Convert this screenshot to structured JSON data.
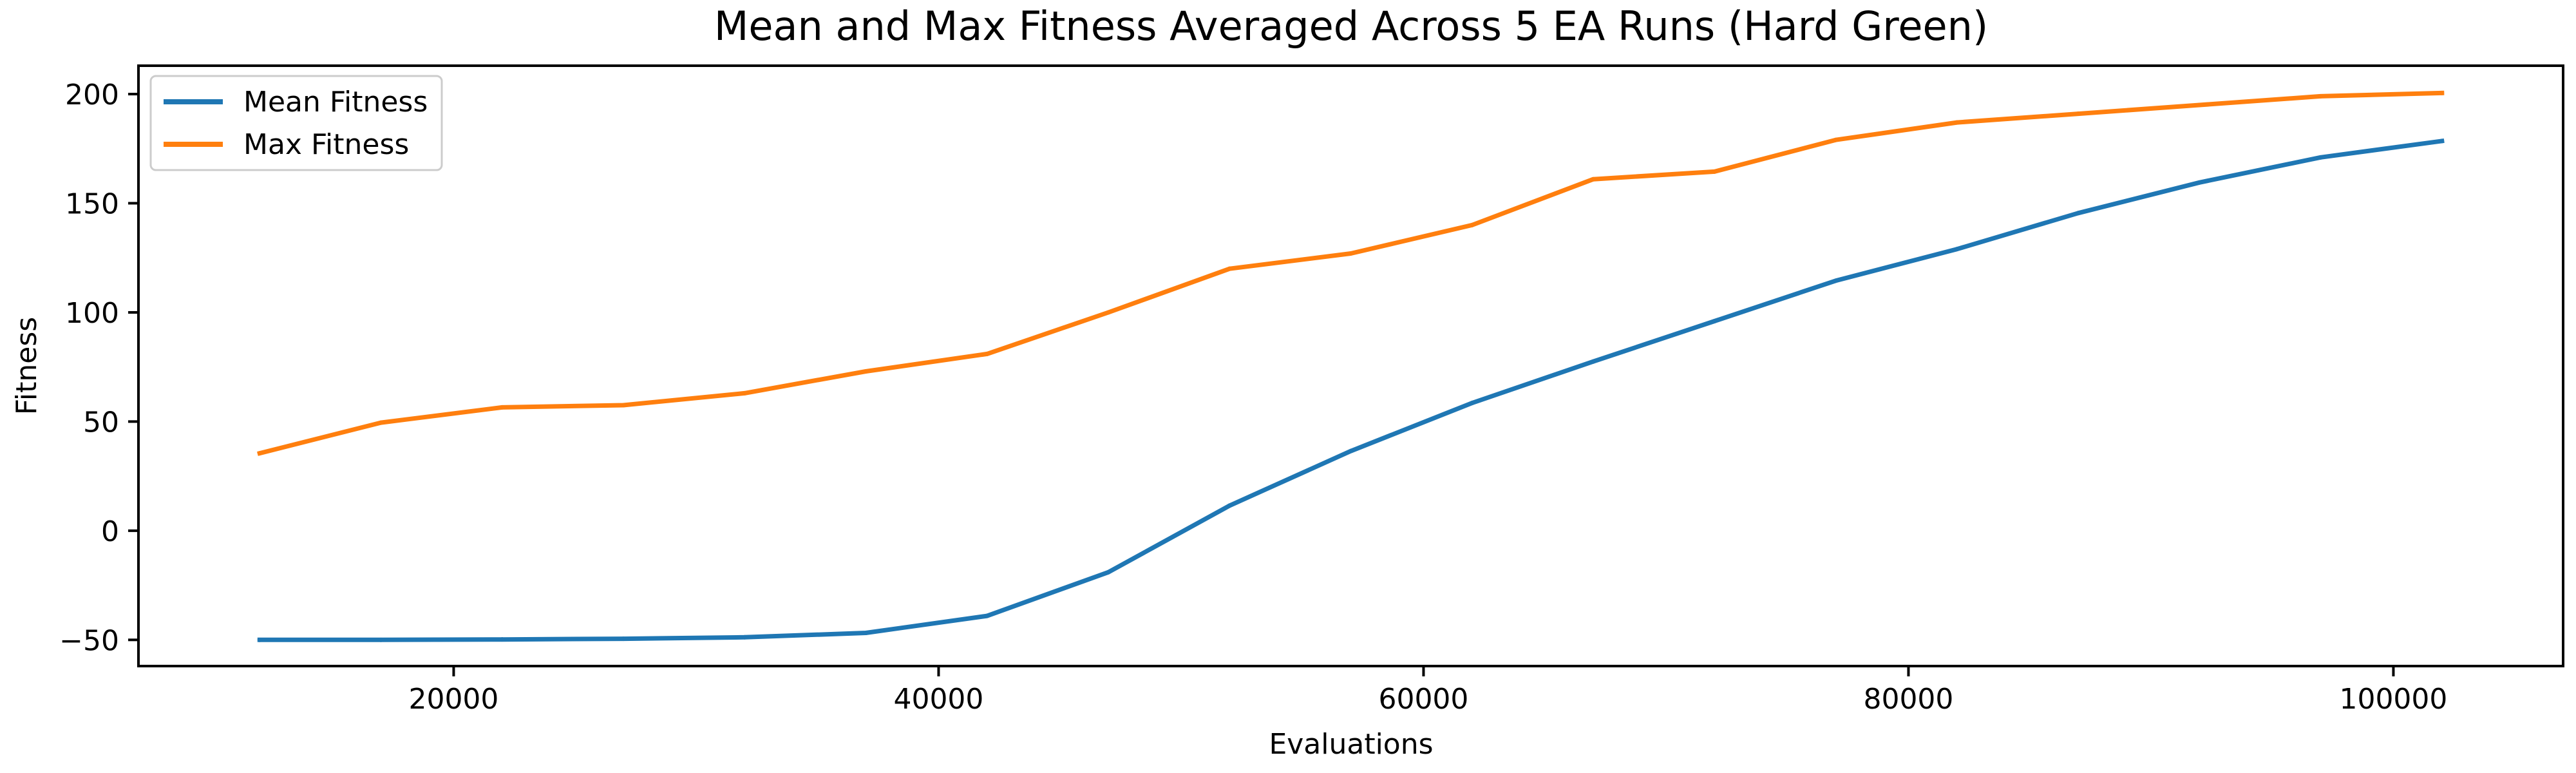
{
  "chart_data": {
    "type": "line",
    "title": "Mean and Max Fitness Averaged Across 5 EA Runs (Hard Green)",
    "xlabel": "Evaluations",
    "ylabel": "Fitness",
    "xlim": [
      7000,
      107000
    ],
    "ylim": [
      -62,
      213
    ],
    "xticks": [
      {
        "value": 20000,
        "label": "20000"
      },
      {
        "value": 40000,
        "label": "40000"
      },
      {
        "value": 60000,
        "label": "60000"
      },
      {
        "value": 80000,
        "label": "80000"
      },
      {
        "value": 100000,
        "label": "100000"
      }
    ],
    "yticks": [
      {
        "value": -50,
        "label": "−50"
      },
      {
        "value": 0,
        "label": "0"
      },
      {
        "value": 50,
        "label": "50"
      },
      {
        "value": 100,
        "label": "100"
      },
      {
        "value": 150,
        "label": "150"
      },
      {
        "value": 200,
        "label": "200"
      }
    ],
    "grid": false,
    "legend_position": "top-left",
    "x": [
      12000,
      17000,
      22000,
      27000,
      32000,
      37000,
      42000,
      47000,
      52000,
      57000,
      62000,
      67000,
      72000,
      77000,
      82000,
      87000,
      92000,
      97000,
      102000
    ],
    "series": [
      {
        "name": "Mean Fitness",
        "color": "#1f77b4",
        "values": [
          -50,
          -50,
          -49.8,
          -49.5,
          -48.8,
          -46.8,
          -39,
          -19,
          11.5,
          36.5,
          58.5,
          77.5,
          96,
          114.5,
          129,
          145.5,
          159.5,
          171,
          178.5
        ]
      },
      {
        "name": "Max Fitness",
        "color": "#ff7f0e",
        "values": [
          35.5,
          49.5,
          56.5,
          57.5,
          63,
          73,
          81,
          100,
          120,
          127,
          140,
          161,
          164.5,
          179,
          187,
          191,
          195,
          199,
          200.5
        ]
      }
    ]
  }
}
